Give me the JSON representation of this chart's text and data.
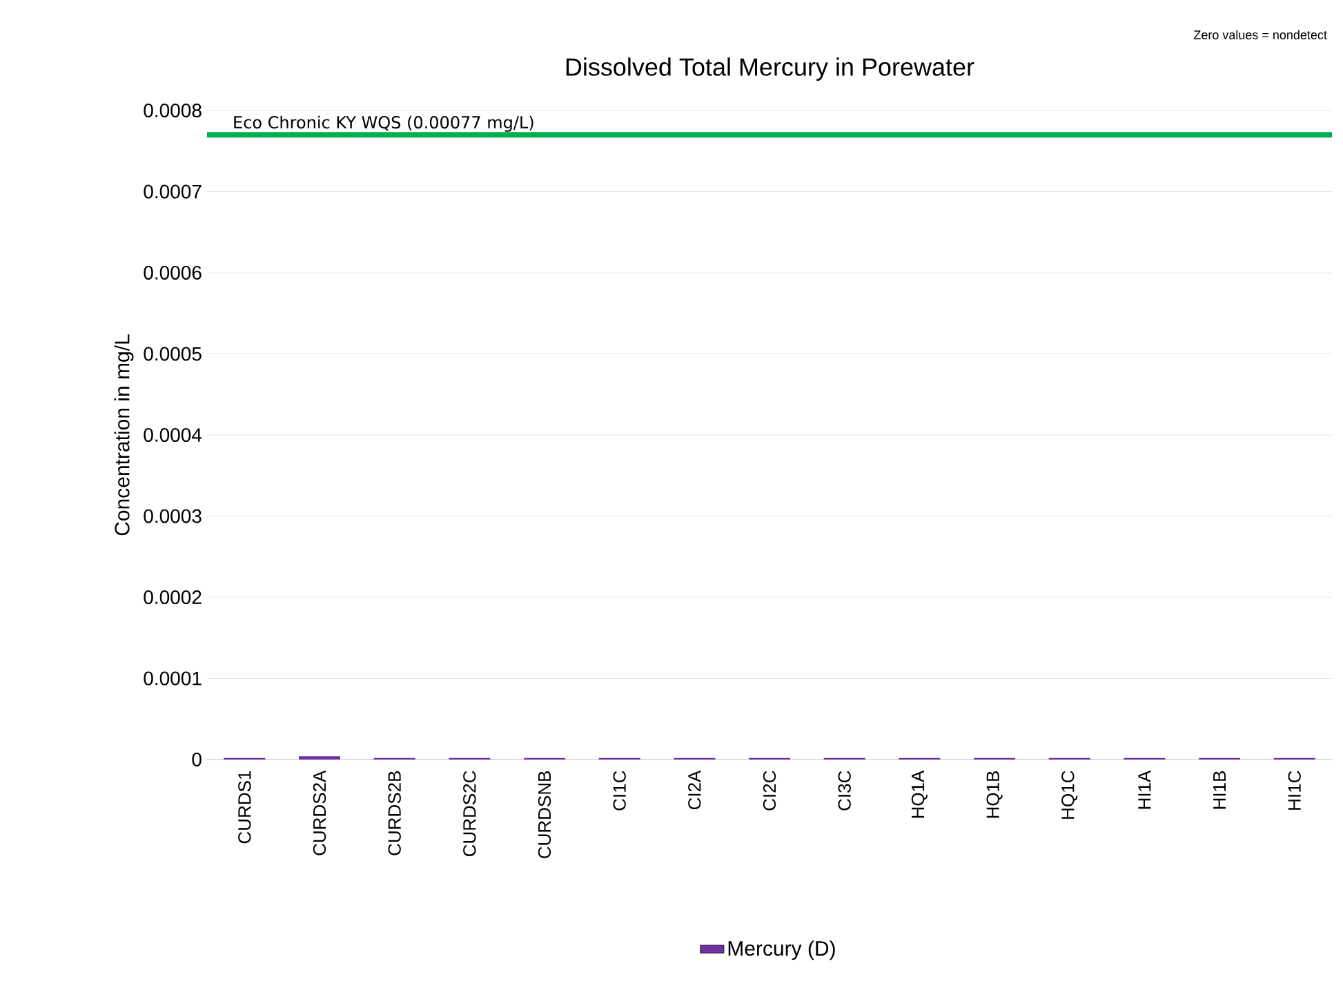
{
  "chart_data": {
    "type": "bar",
    "title": "Dissolved Total Mercury in Porewater",
    "ylabel": "Concentration in mg/L",
    "categories": [
      "CURDS1",
      "CURDS2A",
      "CURDS2B",
      "CURDS2C",
      "CURDSNB",
      "CI1C",
      "CI2A",
      "CI2C",
      "CI3C",
      "HQ1A",
      "HQ1B",
      "HQ1C",
      "HI1A",
      "HI1B",
      "HI1C"
    ],
    "series": [
      {
        "name": "Mercury (D)",
        "color": "#7030a0",
        "values": [
          2e-06,
          4e-06,
          2e-06,
          2e-06,
          2e-06,
          2e-06,
          2e-06,
          2e-06,
          2e-06,
          2e-06,
          2e-06,
          2e-06,
          2e-06,
          2e-06,
          2e-06
        ]
      }
    ],
    "ylim": [
      0,
      0.0008
    ],
    "yticks": [
      0,
      0.0001,
      0.0002,
      0.0003,
      0.0004,
      0.0005,
      0.0006,
      0.0007,
      0.0008
    ],
    "grid": "y",
    "legend": "bottom",
    "ref_lines": [
      {
        "axis": "y",
        "value": 0.00077,
        "label": "Eco Chronic KY WQS (0.00077 mg/L)",
        "color": "#00b050"
      }
    ],
    "annotations": [
      "Zero values = nondetect"
    ]
  }
}
